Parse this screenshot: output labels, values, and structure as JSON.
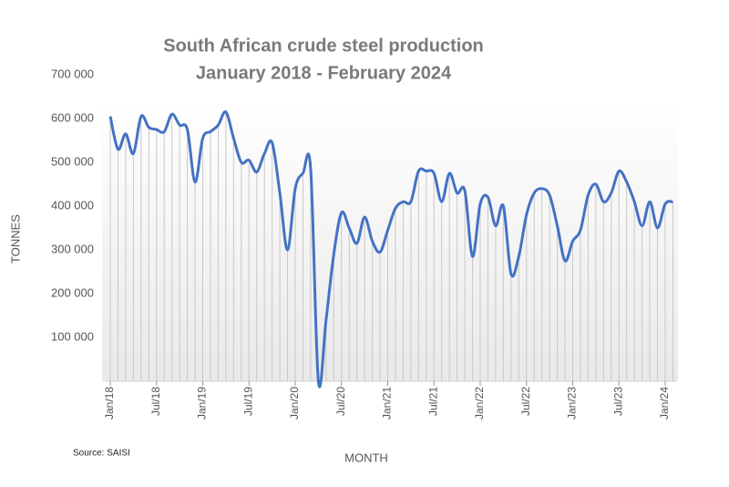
{
  "chart_data": {
    "type": "line",
    "title": "South African crude steel production",
    "subtitle": "January 2018 - February 2024",
    "y_label": "TONNES",
    "x_label": "MONTH",
    "source": "Source: SAISI",
    "categories": [
      "Jan/18",
      null,
      null,
      null,
      null,
      null,
      "Jul/18",
      null,
      null,
      null,
      null,
      null,
      "Jan/19",
      null,
      null,
      null,
      null,
      null,
      "Jul/19",
      null,
      null,
      null,
      null,
      null,
      "Jan/20",
      null,
      null,
      null,
      null,
      null,
      "Jul/20",
      null,
      null,
      null,
      null,
      null,
      "Jan/21",
      null,
      null,
      null,
      null,
      null,
      "Jul/21",
      null,
      null,
      null,
      null,
      null,
      "Jan/22",
      null,
      null,
      null,
      null,
      null,
      "Jul/22",
      null,
      null,
      null,
      null,
      null,
      "Jan/23",
      null,
      null,
      null,
      null,
      null,
      "Jul/23",
      null,
      null,
      null,
      null,
      null,
      "Jan/24",
      null
    ],
    "series": [
      {
        "name": "Crude steel production",
        "color": "#4472c4",
        "values": [
          605000,
          530000,
          565000,
          520000,
          605000,
          580000,
          575000,
          570000,
          610000,
          585000,
          575000,
          455000,
          555000,
          570000,
          585000,
          615000,
          555000,
          500000,
          505000,
          478000,
          520000,
          545000,
          430000,
          300000,
          440000,
          475000,
          485000,
          0,
          140000,
          290000,
          385000,
          350000,
          315000,
          375000,
          320000,
          295000,
          345000,
          395000,
          410000,
          410000,
          480000,
          480000,
          475000,
          410000,
          475000,
          430000,
          435000,
          285000,
          405000,
          420000,
          355000,
          400000,
          245000,
          285000,
          380000,
          430000,
          440000,
          425000,
          355000,
          275000,
          320000,
          345000,
          425000,
          450000,
          410000,
          430000,
          480000,
          455000,
          410000,
          355000,
          410000,
          350000,
          405000,
          410000
        ]
      }
    ],
    "ylim": [
      0,
      700000
    ],
    "yticks": [
      {
        "value": 100000,
        "label": "100 000"
      },
      {
        "value": 200000,
        "label": "200 000"
      },
      {
        "value": 300000,
        "label": "300 000"
      },
      {
        "value": 400000,
        "label": "400 000"
      },
      {
        "value": 500000,
        "label": "500 000"
      },
      {
        "value": 600000,
        "label": "600 000"
      },
      {
        "value": 700000,
        "label": "700 000"
      }
    ],
    "drop_lines": true
  }
}
